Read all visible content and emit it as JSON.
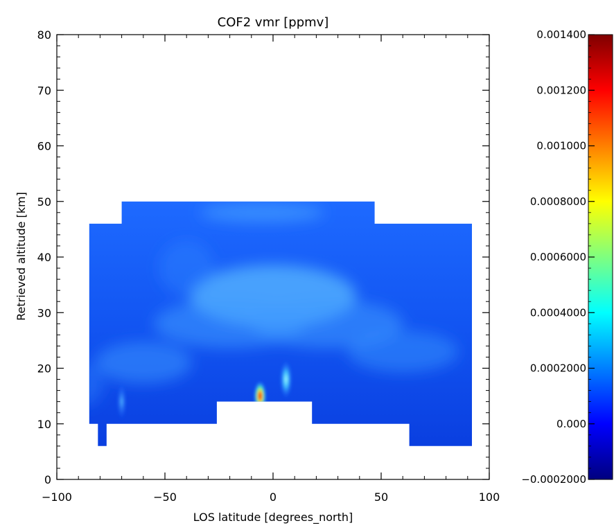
{
  "chart_data": {
    "type": "heatmap",
    "title": "COF2 vmr [ppmv]",
    "xlabel": "LOS latitude [degrees_north]",
    "ylabel": "Retrieved altitude [km]",
    "xlim": [
      -100,
      100
    ],
    "ylim": [
      0,
      80
    ],
    "x_ticks": [
      -100,
      -50,
      0,
      50,
      100
    ],
    "x_tick_labels": [
      "−100",
      "−50",
      "0",
      "50",
      "100"
    ],
    "y_ticks": [
      0,
      10,
      20,
      30,
      40,
      50,
      60,
      70,
      80
    ],
    "y_tick_labels": [
      "0",
      "10",
      "20",
      "30",
      "40",
      "50",
      "60",
      "70",
      "80"
    ],
    "grid": false,
    "colormap": "rainbow (dark blue to dark red)",
    "colorbar": {
      "range": [
        -0.0002,
        0.0014
      ],
      "ticks": [
        -0.0002,
        0.0,
        0.0002,
        0.0004,
        0.0006,
        0.0008,
        0.001,
        0.0012,
        0.0014
      ],
      "tick_labels": [
        "−0.0002000",
        "0.000",
        "0.0002000",
        "0.0004000",
        "0.0006000",
        "0.0008000",
        "0.001000",
        "0.001200",
        "0.001400"
      ],
      "colors": [
        "#00007f",
        "#0000ff",
        "#007fff",
        "#00ffff",
        "#7fff7f",
        "#ffff00",
        "#ff7f00",
        "#ff0000",
        "#7f0000"
      ]
    },
    "coverage_outline": [
      [
        -85,
        10
      ],
      [
        -85,
        46
      ],
      [
        -70,
        46
      ],
      [
        -70,
        50
      ],
      [
        47,
        50
      ],
      [
        47,
        46
      ],
      [
        92,
        46
      ],
      [
        92,
        6
      ],
      [
        63,
        6
      ],
      [
        63,
        10
      ],
      [
        18,
        10
      ],
      [
        18,
        14
      ],
      [
        -26,
        14
      ],
      [
        -26,
        10
      ],
      [
        -77,
        10
      ],
      [
        -77,
        6
      ],
      [
        -81,
        6
      ],
      [
        -81,
        10
      ]
    ],
    "features": [
      {
        "lat": -6,
        "alt": 15,
        "value": 0.0014
      },
      {
        "lat": 6,
        "alt": 18,
        "value": 0.0004
      },
      {
        "lat": -70,
        "alt": 14,
        "value": 0.00025
      }
    ],
    "background_value": 0.0
  }
}
